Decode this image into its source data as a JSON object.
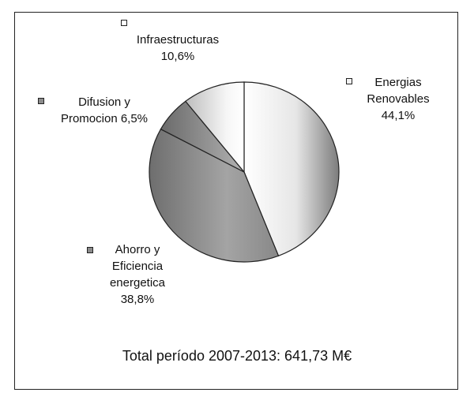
{
  "chart_data": {
    "type": "pie",
    "slices": [
      {
        "label_lines": [
          "Energias",
          "Renovables",
          "44,1%"
        ],
        "value": 44.1,
        "marker_color": "#f2f2f2"
      },
      {
        "label_lines": [
          "Ahorro y",
          "Eficiencia",
          "energetica",
          "38,8%"
        ],
        "value": 38.8,
        "marker_color": "#8a8a8a"
      },
      {
        "label_lines": [
          "Difusion y",
          "Promocion 6,5%"
        ],
        "value": 6.5,
        "marker_color": "#8c8c8c"
      },
      {
        "label_lines": [
          "Infraestructuras",
          "10,6%"
        ],
        "value": 10.6,
        "marker_color": "#ffffff"
      }
    ],
    "total_text": "Total período 2007-2013: 641,73 M€",
    "start_angle": "12 o'clock",
    "direction": "clockwise"
  }
}
